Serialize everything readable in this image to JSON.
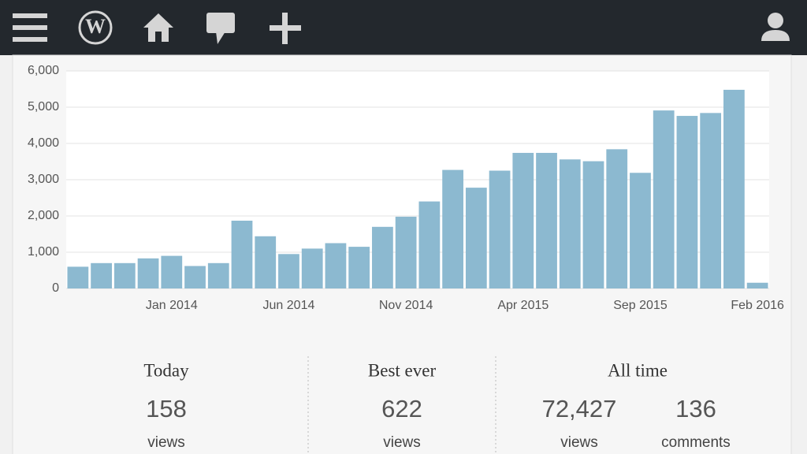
{
  "chart_data": {
    "type": "bar",
    "categories": [
      null,
      null,
      null,
      null,
      "Jan 2014",
      null,
      null,
      null,
      null,
      "Jun 2014",
      null,
      null,
      null,
      null,
      "Nov 2014",
      null,
      null,
      null,
      null,
      "Apr 2015",
      null,
      null,
      null,
      null,
      "Sep 2015",
      null,
      null,
      null,
      null,
      "Feb 2016"
    ],
    "values": [
      600,
      700,
      700,
      830,
      900,
      620,
      700,
      1870,
      1440,
      950,
      1100,
      1250,
      1150,
      1700,
      1980,
      2400,
      3270,
      2780,
      3250,
      3740,
      3740,
      3560,
      3510,
      3840,
      3190,
      4910,
      4760,
      4840,
      5480,
      158
    ],
    "color": "#8cb9d0",
    "ylim": [
      0,
      6000
    ],
    "yticks": [
      0,
      {
        "value": 1000,
        "label": "1,000"
      },
      {
        "value": 2000,
        "label": "2,000"
      },
      {
        "value": 3000,
        "label": "3,000"
      },
      {
        "value": 4000,
        "label": "4,000"
      },
      {
        "value": 5000,
        "label": "5,000"
      },
      {
        "value": 6000,
        "label": "6,000"
      }
    ],
    "grid": true
  },
  "stats": [
    {
      "title": "Today",
      "items": [
        {
          "number": "158",
          "unit": "views"
        }
      ]
    },
    {
      "title": "Best ever",
      "items": [
        {
          "number": "622",
          "unit": "views"
        }
      ]
    },
    {
      "title": "All time",
      "items": [
        {
          "number": "72,427",
          "unit": "views"
        },
        {
          "number": "136",
          "unit": "comments"
        }
      ]
    }
  ]
}
